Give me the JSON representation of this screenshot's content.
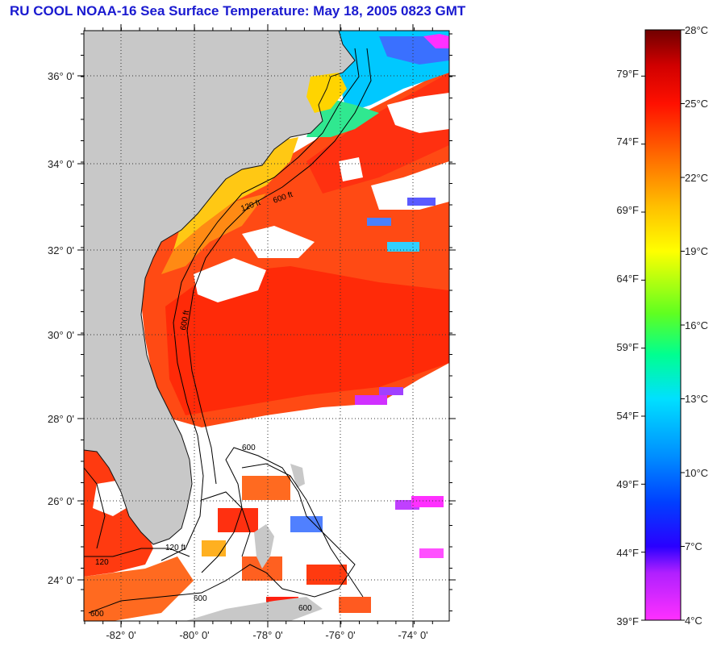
{
  "title": "RU COOL  NOAA-16  Sea Surface Temperature:  May 18, 2005 0823 GMT",
  "map": {
    "lat_labels": [
      "36° 0'",
      "34° 0'",
      "32° 0'",
      "30° 0'",
      "28° 0'",
      "26° 0'",
      "24° 0'"
    ],
    "lon_labels": [
      "-82° 0'",
      "-80° 0'",
      "-78° 0'",
      "-76° 0'",
      "-74° 0'"
    ],
    "contour_labels": [
      "600 ft",
      "120 ft",
      "600 ft",
      "600",
      "120 ft",
      "600",
      "600",
      "120",
      "600"
    ],
    "colors": {
      "land": "#c8c8c8",
      "cloud": "#ffffff",
      "warm_water": "#ff3a10",
      "gulf_stream": "#ff2a08",
      "shelf_water": "#ffd000",
      "cold_water": "#00d8ff"
    }
  },
  "colorbar": {
    "celsius_labels": [
      "28°C",
      "25°C",
      "22°C",
      "19°C",
      "16°C",
      "13°C",
      "10°C",
      "7°C",
      "4°C"
    ],
    "fahrenheit_labels": [
      "79°F",
      "74°F",
      "69°F",
      "64°F",
      "59°F",
      "54°F",
      "49°F",
      "44°F",
      "39°F"
    ],
    "celsius_range": [
      4,
      28
    ],
    "fahrenheit_range": [
      39,
      82.4
    ]
  }
}
